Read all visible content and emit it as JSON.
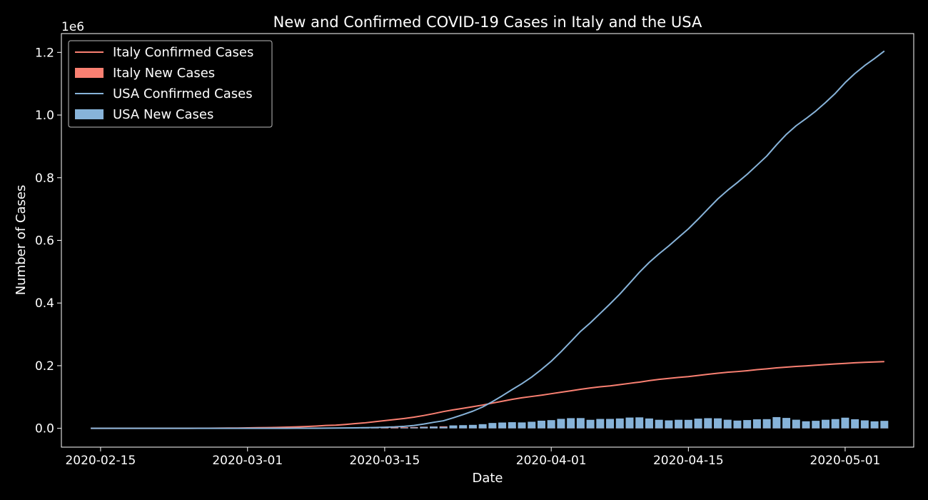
{
  "chart_data": {
    "type": "line",
    "title": "New and Confirmed COVID-19 Cases in Italy and the USA",
    "xlabel": "Date",
    "ylabel": "Number of Cases",
    "y_offset_label": "1e6",
    "xlim": [
      "2020-02-11",
      "2020-05-08"
    ],
    "ylim": [
      -60000,
      1260000
    ],
    "x_ticks": [
      "2020-02-15",
      "2020-03-01",
      "2020-03-15",
      "2020-04-01",
      "2020-04-15",
      "2020-05-01"
    ],
    "y_ticks": [
      0.0,
      0.2,
      0.4,
      0.6,
      0.8,
      1.0,
      1.2
    ],
    "y_tick_labels": [
      "0.0",
      "0.2",
      "0.4",
      "0.6",
      "0.8",
      "1.0",
      "1.2"
    ],
    "grid": false,
    "legend_position": "top-left",
    "x": [
      "2020-02-14",
      "2020-02-15",
      "2020-02-16",
      "2020-02-17",
      "2020-02-18",
      "2020-02-19",
      "2020-02-20",
      "2020-02-21",
      "2020-02-22",
      "2020-02-23",
      "2020-02-24",
      "2020-02-25",
      "2020-02-26",
      "2020-02-27",
      "2020-02-28",
      "2020-02-29",
      "2020-03-01",
      "2020-03-02",
      "2020-03-03",
      "2020-03-04",
      "2020-03-05",
      "2020-03-06",
      "2020-03-07",
      "2020-03-08",
      "2020-03-09",
      "2020-03-10",
      "2020-03-11",
      "2020-03-12",
      "2020-03-13",
      "2020-03-14",
      "2020-03-15",
      "2020-03-16",
      "2020-03-17",
      "2020-03-18",
      "2020-03-19",
      "2020-03-20",
      "2020-03-21",
      "2020-03-22",
      "2020-03-23",
      "2020-03-24",
      "2020-03-25",
      "2020-03-26",
      "2020-03-27",
      "2020-03-28",
      "2020-03-29",
      "2020-03-30",
      "2020-03-31",
      "2020-04-01",
      "2020-04-02",
      "2020-04-03",
      "2020-04-04",
      "2020-04-05",
      "2020-04-06",
      "2020-04-07",
      "2020-04-08",
      "2020-04-09",
      "2020-04-10",
      "2020-04-11",
      "2020-04-12",
      "2020-04-13",
      "2020-04-14",
      "2020-04-15",
      "2020-04-16",
      "2020-04-17",
      "2020-04-18",
      "2020-04-19",
      "2020-04-20",
      "2020-04-21",
      "2020-04-22",
      "2020-04-23",
      "2020-04-24",
      "2020-04-25",
      "2020-04-26",
      "2020-04-27",
      "2020-04-28",
      "2020-04-29",
      "2020-04-30",
      "2020-05-01",
      "2020-05-02",
      "2020-05-03",
      "2020-05-04",
      "2020-05-05"
    ],
    "series": [
      {
        "name": "Italy Confirmed Cases",
        "kind": "line",
        "color": "#fa8072",
        "values": [
          3,
          3,
          3,
          3,
          3,
          3,
          3,
          20,
          62,
          155,
          229,
          322,
          453,
          655,
          888,
          1128,
          1694,
          2036,
          2502,
          3089,
          3858,
          4636,
          5883,
          7375,
          9172,
          10149,
          12462,
          15113,
          17660,
          21157,
          24747,
          27980,
          31506,
          35713,
          41035,
          47021,
          53578,
          59138,
          63927,
          69176,
          74386,
          80589,
          86498,
          92472,
          97689,
          101739,
          105792,
          110574,
          115242,
          119827,
          124632,
          128948,
          132547,
          135586,
          139422,
          143626,
          147577,
          152271,
          156363,
          159516,
          162488,
          165155,
          168941,
          172434,
          175925,
          178972,
          181228,
          183957,
          187327,
          189973,
          192994,
          195351,
          197675,
          199414,
          201505,
          203591,
          205463,
          207428,
          209328,
          210717,
          211938,
          213013
        ]
      },
      {
        "name": "Italy New Cases",
        "kind": "bar",
        "color": "#fa8072",
        "values": [
          0,
          0,
          0,
          0,
          0,
          0,
          0,
          17,
          42,
          93,
          74,
          93,
          131,
          202,
          233,
          240,
          566,
          342,
          466,
          587,
          769,
          778,
          1247,
          1492,
          1797,
          977,
          2313,
          2651,
          2547,
          3497,
          3590,
          3233,
          3526,
          4207,
          5322,
          5986,
          6557,
          5560,
          4789,
          5249,
          5210,
          6203,
          5909,
          5974,
          5217,
          4050,
          4053,
          4782,
          4668,
          4585,
          4805,
          4316,
          3599,
          3039,
          3836,
          4204,
          3951,
          4694,
          4092,
          3153,
          2972,
          2667,
          3786,
          3493,
          3491,
          3047,
          2256,
          2729,
          3370,
          2646,
          3021,
          2357,
          2324,
          1739,
          2091,
          2086,
          1872,
          1965,
          1900,
          1389,
          1221,
          1075
        ]
      },
      {
        "name": "USA Confirmed Cases",
        "kind": "line",
        "color": "#87b3d9",
        "values": [
          13,
          15,
          15,
          15,
          15,
          15,
          15,
          35,
          35,
          35,
          53,
          57,
          60,
          60,
          63,
          68,
          75,
          100,
          124,
          158,
          221,
          319,
          435,
          541,
          704,
          994,
          1301,
          1630,
          2183,
          2770,
          3613,
          4596,
          6344,
          9197,
          13779,
          19367,
          24192,
          33592,
          43781,
          54856,
          68211,
          85356,
          103942,
          123578,
          142460,
          163479,
          187943,
          214120,
          244433,
          276950,
          309724,
          336969,
          367003,
          397121,
          428645,
          463075,
          498124,
          529627,
          556910,
          582379,
          609685,
          636745,
          667800,
          700252,
          732197,
          759698,
          784545,
          810969,
          839780,
          869153,
          905046,
          938321,
          965910,
          988451,
          1012524,
          1039932,
          1069424,
          1103461,
          1132539,
          1158040,
          1180375,
          1204351
        ]
      },
      {
        "name": "USA New Cases",
        "kind": "bar",
        "color": "#87b3d9",
        "values": [
          0,
          2,
          0,
          0,
          0,
          0,
          0,
          20,
          0,
          0,
          18,
          4,
          3,
          0,
          3,
          5,
          7,
          25,
          24,
          34,
          63,
          98,
          116,
          106,
          163,
          290,
          307,
          329,
          553,
          587,
          843,
          983,
          1748,
          2853,
          4582,
          5588,
          4825,
          9400,
          10189,
          11075,
          13355,
          17145,
          18586,
          19636,
          18882,
          21019,
          24464,
          26177,
          30313,
          32517,
          32774,
          27245,
          30034,
          30118,
          31524,
          34430,
          35049,
          31503,
          27283,
          25469,
          27306,
          27060,
          31055,
          32452,
          31945,
          27501,
          24847,
          26424,
          28811,
          29373,
          35893,
          33275,
          27589,
          22541,
          24073,
          27408,
          29492,
          34037,
          29078,
          25501,
          22335,
          23976
        ]
      }
    ]
  }
}
